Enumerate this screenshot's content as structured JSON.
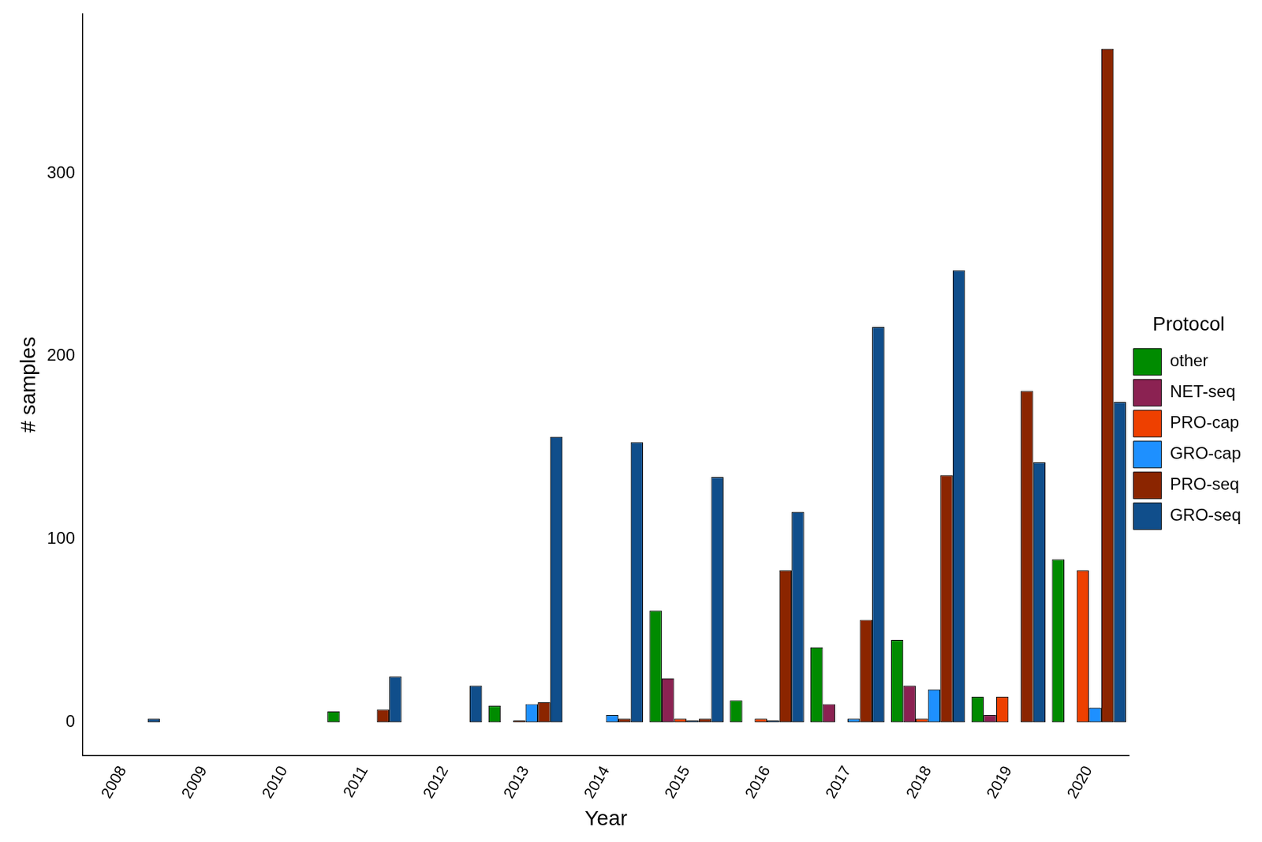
{
  "chart_data": {
    "type": "bar",
    "x_label": "Year",
    "y_label": "# samples",
    "legend_title": "Protocol",
    "legend": "right",
    "grid": false,
    "categories": [
      "2008",
      "2009",
      "2010",
      "2011",
      "2012",
      "2013",
      "2014",
      "2015",
      "2016",
      "2017",
      "2018",
      "2019",
      "2020"
    ],
    "ylim": [
      -18,
      387
    ],
    "yticks": [
      0,
      100,
      200,
      300
    ],
    "series": [
      {
        "name": "other",
        "color": "#008B00",
        "values": [
          0,
          null,
          null,
          6,
          0,
          9,
          0,
          61,
          12,
          41,
          45,
          14,
          89
        ]
      },
      {
        "name": "NET-seq",
        "color": "#8B2252",
        "values": [
          0,
          null,
          null,
          0,
          0,
          0,
          0,
          24,
          0,
          10,
          20,
          4,
          0
        ]
      },
      {
        "name": "PRO-cap",
        "color": "#EE4000",
        "values": [
          0,
          null,
          null,
          0,
          0,
          1,
          0,
          2,
          2,
          0,
          2,
          14,
          83
        ]
      },
      {
        "name": "GRO-cap",
        "color": "#1E90FF",
        "values": [
          0,
          null,
          null,
          0,
          0,
          10,
          4,
          1,
          1,
          2,
          18,
          0,
          8
        ]
      },
      {
        "name": "PRO-seq",
        "color": "#8B2500",
        "values": [
          0,
          null,
          null,
          7,
          0,
          11,
          2,
          2,
          83,
          56,
          135,
          181,
          368
        ]
      },
      {
        "name": "GRO-seq",
        "color": "#104E8B",
        "values": [
          2,
          null,
          null,
          25,
          20,
          156,
          153,
          134,
          115,
          216,
          247,
          142,
          175
        ]
      }
    ]
  }
}
